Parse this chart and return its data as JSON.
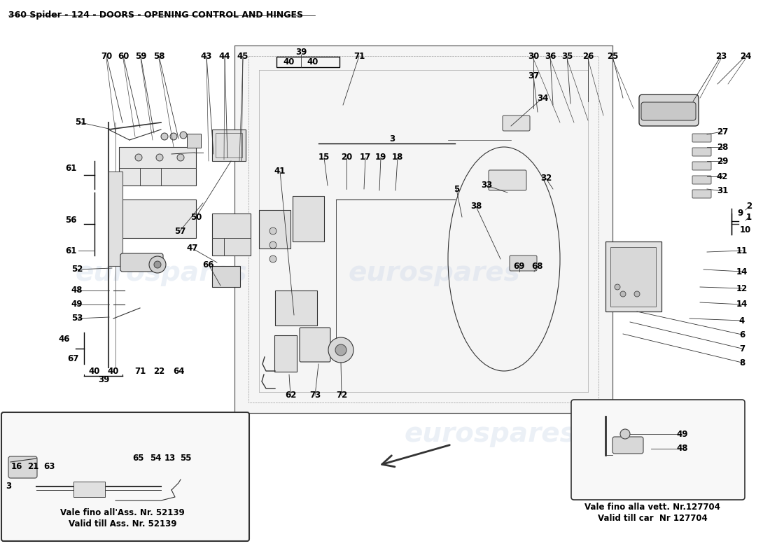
{
  "title": "360 Spider - 124 - DOORS - OPENING CONTROL AND HINGES",
  "title_fontsize": 9,
  "bg_color": "#ffffff",
  "line_color": "#000000",
  "part_color": "#111111",
  "watermark_text": "eurospares",
  "watermark_color": "#c8d4e8",
  "box1_text_line1": "Vale fino all'Ass. Nr. 52139",
  "box1_text_line2": "Valid till Ass. Nr. 52139",
  "box2_text_line1": "Vale fino alla vett. Nr.127704",
  "box2_text_line2": "Valid till car  Nr 127704"
}
